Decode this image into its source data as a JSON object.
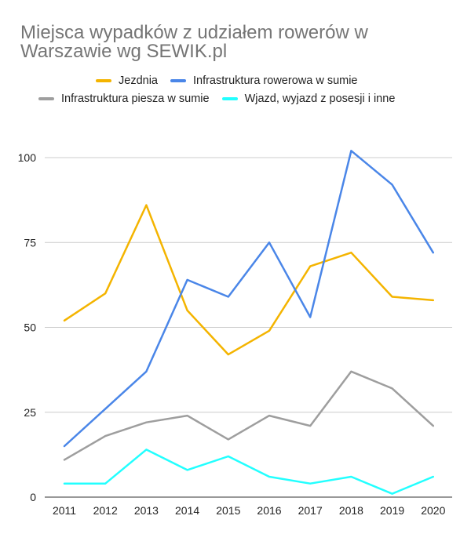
{
  "chart_data": {
    "type": "line",
    "title": "Miejsca wypadków z udziałem rowerów w Warszawie wg SEWIK.pl",
    "categories": [
      "2011",
      "2012",
      "2013",
      "2014",
      "2015",
      "2016",
      "2017",
      "2018",
      "2019",
      "2020"
    ],
    "series": [
      {
        "name": "Jezdnia",
        "color": "#f4b400",
        "values": [
          52,
          60,
          86,
          55,
          42,
          49,
          68,
          72,
          59,
          58
        ]
      },
      {
        "name": "Infrastruktura rowerowa w sumie",
        "color": "#4a86e8",
        "values": [
          15,
          26,
          37,
          64,
          59,
          75,
          53,
          102,
          92,
          72
        ]
      },
      {
        "name": "Infrastruktura piesza w sumie",
        "color": "#9e9e9e",
        "values": [
          11,
          18,
          22,
          24,
          17,
          24,
          21,
          37,
          32,
          21
        ]
      },
      {
        "name": "Wjazd, wyjazd z posesji i inne",
        "color": "#22ffff",
        "values": [
          4,
          4,
          14,
          8,
          12,
          6,
          4,
          6,
          1,
          6
        ]
      }
    ],
    "yticks": [
      "0",
      "25",
      "50",
      "75",
      "100"
    ],
    "ylim": [
      0,
      100
    ],
    "xlabel": "",
    "ylabel": "",
    "legend": "top",
    "grid": true
  }
}
